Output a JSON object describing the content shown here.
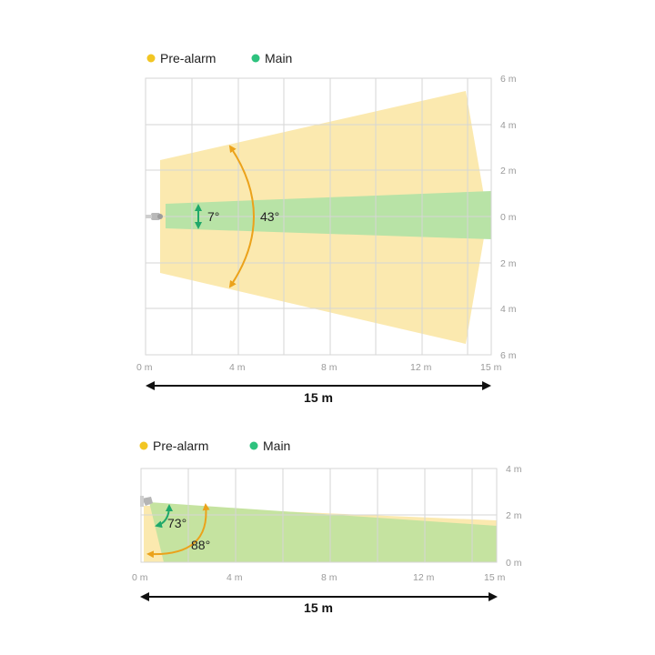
{
  "colors": {
    "pre_alarm": "#f2c623",
    "main": "#2ec27e",
    "pre_alarm_zone": "#fbe7a6",
    "main_zone": "#b8e3a6",
    "arrow_main": "#1fa86a",
    "arrow_pre": "#eba21b",
    "grid": "#d6d6d6"
  },
  "top_view": {
    "legend": {
      "pre_alarm": "Pre-alarm",
      "main": "Main"
    },
    "x_ticks": [
      "0 m",
      "4 m",
      "8 m",
      "12 m",
      "15 m"
    ],
    "y_ticks": [
      "6 m",
      "4 m",
      "2 m",
      "0 m",
      "2 m",
      "4 m",
      "6 m"
    ],
    "main_angle": "7°",
    "pre_alarm_angle": "43°",
    "distance": "15 m",
    "detector_icon": "sensor-icon"
  },
  "side_view": {
    "legend": {
      "pre_alarm": "Pre-alarm",
      "main": "Main"
    },
    "x_ticks": [
      "0 m",
      "4 m",
      "8 m",
      "12 m",
      "15 m"
    ],
    "y_ticks": [
      "4 m",
      "2 m",
      "0 m"
    ],
    "main_angle": "73°",
    "pre_alarm_angle": "88°",
    "distance": "15 m",
    "detector_icon": "sensor-icon"
  }
}
